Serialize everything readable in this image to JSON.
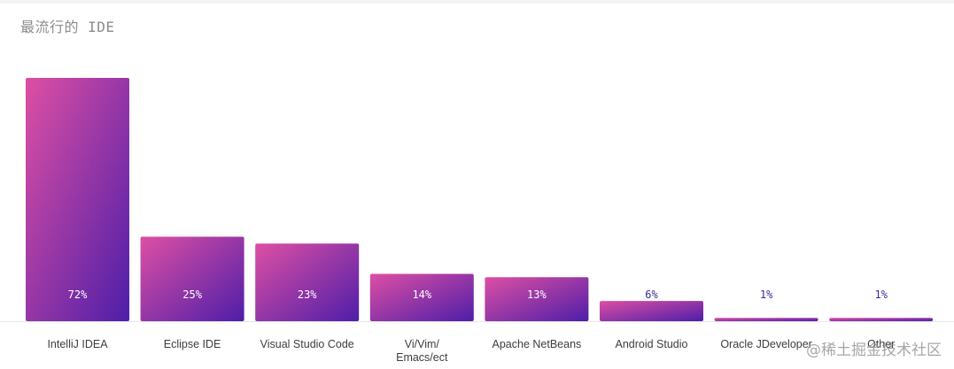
{
  "chart_data": {
    "type": "bar",
    "title": "最流行的 IDE",
    "xlabel": "",
    "ylabel": "",
    "ylim": [
      0,
      72
    ],
    "categories": [
      "IntelliJ IDEA",
      "Eclipse IDE",
      "Visual Studio Code",
      "Vi/Vim/ Emacs/ect",
      "Apache NetBeans",
      "Android Studio",
      "Oracle JDeveloper",
      "Other"
    ],
    "values": [
      72,
      25,
      23,
      14,
      13,
      6,
      1,
      1
    ],
    "value_labels": [
      "72%",
      "25%",
      "23%",
      "14%",
      "13%",
      "6%",
      "1%",
      "1%"
    ],
    "grid": false,
    "legend": "none"
  },
  "colors": {
    "bar_gradient_start": "#dd4fa4",
    "bar_gradient_end": "#4e1ea8",
    "label_on_bar": "#ffffff",
    "label_above_bar": "#3b2a9c",
    "baseline": "#e8e8ea"
  },
  "watermark": "@稀土掘金技术社区"
}
